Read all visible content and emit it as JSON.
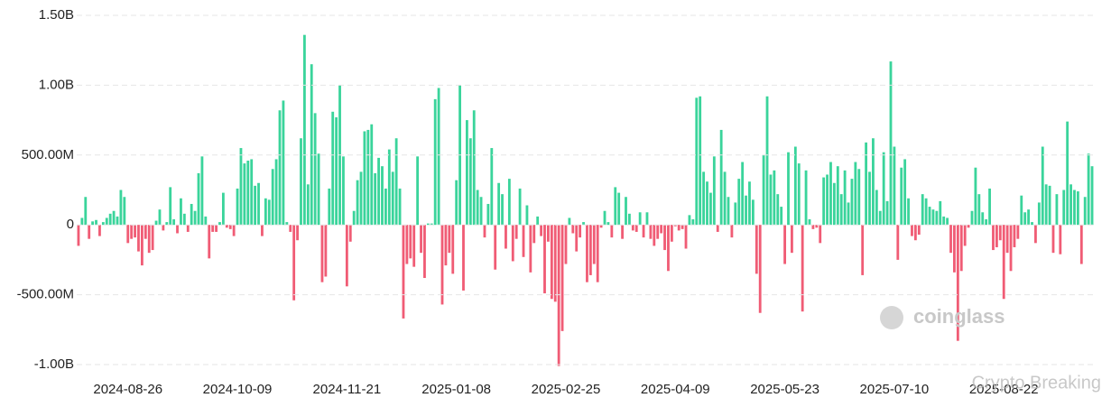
{
  "chart_data": {
    "type": "bar",
    "positive_color": "#3ad49b",
    "negative_color": "#f05c75",
    "grid": true,
    "ylim": [
      -1000,
      1500
    ],
    "yticks": [
      {
        "value": -1000,
        "label": "-1.00B"
      },
      {
        "value": -500,
        "label": "-500.00M"
      },
      0,
      {
        "value": 500,
        "label": "500.00M"
      },
      {
        "value": 1000,
        "label": "1.00B"
      },
      {
        "value": 1500,
        "label": "1.50B"
      }
    ],
    "watermarks": [
      "coinglass",
      "Crypto Breaking"
    ],
    "categories": [
      null,
      null,
      null,
      null,
      null,
      null,
      null,
      null,
      null,
      null,
      null,
      null,
      null,
      null,
      "2024-08-26",
      null,
      null,
      null,
      null,
      null,
      null,
      null,
      null,
      null,
      null,
      null,
      null,
      null,
      null,
      null,
      null,
      null,
      null,
      null,
      null,
      null,
      null,
      null,
      null,
      null,
      null,
      null,
      null,
      null,
      null,
      "2024-10-09",
      null,
      null,
      null,
      null,
      null,
      null,
      null,
      null,
      null,
      null,
      null,
      null,
      null,
      null,
      null,
      null,
      null,
      null,
      null,
      null,
      null,
      null,
      null,
      null,
      null,
      null,
      null,
      null,
      null,
      null,
      "2024-11-21",
      null,
      null,
      null,
      null,
      null,
      null,
      null,
      null,
      null,
      null,
      null,
      null,
      null,
      null,
      null,
      null,
      null,
      null,
      null,
      null,
      null,
      null,
      null,
      null,
      null,
      null,
      null,
      null,
      null,
      null,
      "2025-01-08",
      null,
      null,
      null,
      null,
      null,
      null,
      null,
      null,
      null,
      null,
      null,
      null,
      null,
      null,
      null,
      null,
      null,
      null,
      null,
      null,
      null,
      null,
      null,
      null,
      null,
      null,
      null,
      null,
      null,
      null,
      "2025-02-25",
      null,
      null,
      null,
      null,
      null,
      null,
      null,
      null,
      null,
      null,
      null,
      null,
      null,
      null,
      null,
      null,
      null,
      null,
      null,
      null,
      null,
      null,
      null,
      null,
      null,
      null,
      null,
      null,
      null,
      null,
      "2025-04-09",
      null,
      null,
      null,
      null,
      null,
      null,
      null,
      null,
      null,
      null,
      null,
      null,
      null,
      null,
      null,
      null,
      null,
      null,
      null,
      null,
      null,
      null,
      null,
      null,
      null,
      null,
      null,
      null,
      null,
      null,
      "2025-05-23",
      null,
      null,
      null,
      null,
      null,
      null,
      null,
      null,
      null,
      null,
      null,
      null,
      null,
      null,
      null,
      null,
      null,
      null,
      null,
      null,
      null,
      null,
      null,
      null,
      null,
      null,
      null,
      null,
      null,
      null,
      "2025-07-10",
      null,
      null,
      null,
      null,
      null,
      null,
      null,
      null,
      null,
      null,
      null,
      null,
      null,
      null,
      null,
      null,
      null,
      null,
      null,
      null,
      null,
      null,
      null,
      null,
      null,
      null,
      null,
      null,
      null,
      null,
      "2025-08-22",
      null,
      null,
      null,
      null,
      null,
      null,
      null,
      null,
      null,
      null,
      null,
      null,
      null,
      null,
      null,
      null,
      null,
      null,
      null,
      null,
      null,
      null,
      null,
      null,
      null
    ],
    "values": [
      -150,
      50,
      200,
      -100,
      25,
      35,
      -80,
      20,
      50,
      80,
      100,
      60,
      250,
      200,
      -130,
      -100,
      -90,
      -190,
      -290,
      -100,
      -200,
      -180,
      30,
      110,
      -40,
      20,
      270,
      40,
      -60,
      190,
      80,
      -50,
      150,
      100,
      370,
      490,
      60,
      -240,
      -50,
      -50,
      20,
      230,
      -20,
      -30,
      -80,
      260,
      550,
      440,
      460,
      470,
      280,
      300,
      -80,
      190,
      180,
      400,
      470,
      820,
      890,
      20,
      -50,
      -540,
      -110,
      620,
      1360,
      290,
      1150,
      800,
      510,
      -410,
      -370,
      260,
      810,
      770,
      1000,
      490,
      -440,
      -120,
      100,
      320,
      380,
      670,
      680,
      720,
      370,
      480,
      420,
      260,
      540,
      380,
      620,
      260,
      -670,
      -280,
      -240,
      -300,
      490,
      -200,
      -380,
      10,
      10,
      900,
      980,
      -570,
      -290,
      -200,
      -350,
      320,
      1000,
      -470,
      750,
      620,
      820,
      250,
      200,
      -90,
      150,
      550,
      -320,
      300,
      220,
      -170,
      330,
      -260,
      -100,
      260,
      -230,
      140,
      -340,
      -130,
      60,
      -80,
      -490,
      -120,
      -530,
      -550,
      -1010,
      -760,
      -280,
      50,
      -60,
      -190,
      -90,
      20,
      -410,
      -360,
      -280,
      -410,
      -20,
      100,
      20,
      -90,
      270,
      230,
      -100,
      200,
      80,
      -40,
      -50,
      90,
      -90,
      90,
      -100,
      -150,
      -100,
      -60,
      -180,
      -330,
      -120,
      -10,
      -40,
      -30,
      -170,
      70,
      40,
      910,
      920,
      380,
      310,
      230,
      490,
      -50,
      680,
      380,
      200,
      -90,
      160,
      330,
      450,
      210,
      310,
      180,
      -350,
      -630,
      500,
      920,
      360,
      390,
      220,
      130,
      -280,
      520,
      -200,
      560,
      440,
      -620,
      390,
      40,
      -30,
      -20,
      -130,
      340,
      360,
      450,
      300,
      420,
      220,
      390,
      160,
      330,
      450,
      400,
      -360,
      590,
      380,
      620,
      250,
      100,
      520,
      170,
      1170,
      560,
      -250,
      410,
      470,
      190,
      -80,
      -110,
      -70,
      220,
      190,
      130,
      110,
      100,
      170,
      60,
      50,
      -200,
      -340,
      -830,
      -330,
      -150,
      -20,
      100,
      410,
      220,
      90,
      40,
      260,
      -180,
      -160,
      -110,
      -530,
      -200,
      -330,
      -160,
      -100,
      210,
      90,
      110,
      20,
      -130,
      160,
      560,
      290,
      280,
      -200,
      220,
      -210,
      250,
      740,
      290,
      250,
      240,
      -280,
      200,
      510,
      420
    ]
  }
}
